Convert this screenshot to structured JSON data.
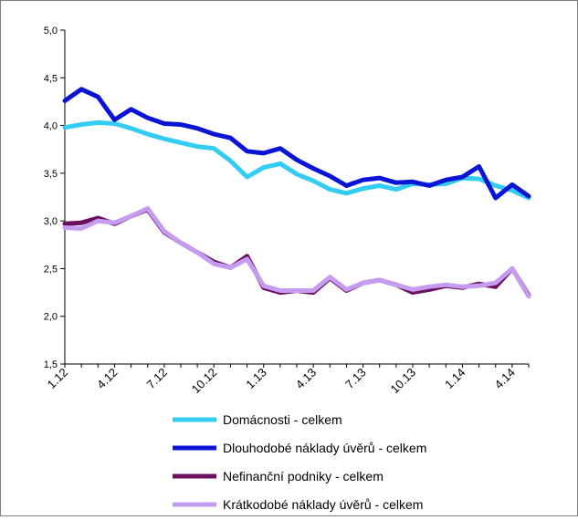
{
  "chart_data": {
    "type": "line",
    "title": "",
    "xlabel": "",
    "ylabel": "",
    "ylim": [
      1.5,
      5.0
    ],
    "yticks": [
      "1,5",
      "2,0",
      "2,5",
      "3,0",
      "3,5",
      "4,0",
      "4,5",
      "5,0"
    ],
    "ytick_values": [
      1.5,
      2.0,
      2.5,
      3.0,
      3.5,
      4.0,
      4.5,
      5.0
    ],
    "x_count": 29,
    "xticks": [
      {
        "index": 0,
        "label": "1.12"
      },
      {
        "index": 3,
        "label": "4.12"
      },
      {
        "index": 6,
        "label": "7.12"
      },
      {
        "index": 9,
        "label": "10.12"
      },
      {
        "index": 12,
        "label": "1.13"
      },
      {
        "index": 15,
        "label": "4.13"
      },
      {
        "index": 18,
        "label": "7.13"
      },
      {
        "index": 21,
        "label": "10.13"
      },
      {
        "index": 24,
        "label": "1.14"
      },
      {
        "index": 27,
        "label": "4.14"
      }
    ],
    "grid": false,
    "legend_position": "bottom",
    "series": [
      {
        "name": "Nefinanční podniky - celkem",
        "color": "#6b0f5e",
        "width": 5,
        "values": [
          2.97,
          2.98,
          3.03,
          2.97,
          3.05,
          3.12,
          2.88,
          2.77,
          2.67,
          2.57,
          2.51,
          2.63,
          2.3,
          2.25,
          2.27,
          2.25,
          2.4,
          2.27,
          2.35,
          2.38,
          2.33,
          2.25,
          2.28,
          2.32,
          2.3,
          2.34,
          2.31,
          2.5,
          2.22
        ]
      },
      {
        "name": "Krátkodobé náklady úvěrů - celkem",
        "color": "#c69cf0",
        "width": 5,
        "values": [
          2.93,
          2.92,
          3.0,
          2.98,
          3.05,
          3.13,
          2.89,
          2.77,
          2.67,
          2.55,
          2.51,
          2.6,
          2.32,
          2.27,
          2.27,
          2.27,
          2.41,
          2.28,
          2.35,
          2.38,
          2.33,
          2.28,
          2.31,
          2.33,
          2.31,
          2.32,
          2.35,
          2.5,
          2.21
        ]
      },
      {
        "name": "Domácnosti - celkem",
        "color": "#33ccf2",
        "width": 5,
        "values": [
          3.98,
          4.01,
          4.03,
          4.02,
          3.97,
          3.91,
          3.86,
          3.82,
          3.78,
          3.76,
          3.63,
          3.46,
          3.56,
          3.6,
          3.49,
          3.42,
          3.33,
          3.29,
          3.34,
          3.37,
          3.33,
          3.39,
          3.38,
          3.39,
          3.45,
          3.44,
          3.37,
          3.32,
          3.24
        ]
      },
      {
        "name": "Dlouhodobé náklady úvěrů - celkem",
        "color": "#0a14d4",
        "width": 5,
        "values": [
          4.26,
          4.38,
          4.3,
          4.06,
          4.17,
          4.08,
          4.02,
          4.01,
          3.97,
          3.91,
          3.87,
          3.73,
          3.71,
          3.76,
          3.64,
          3.55,
          3.47,
          3.37,
          3.43,
          3.45,
          3.4,
          3.41,
          3.37,
          3.43,
          3.46,
          3.57,
          3.24,
          3.38,
          3.26
        ]
      }
    ],
    "legend_order": [
      "Domácnosti - celkem",
      "Dlouhodobé náklady úvěrů - celkem",
      "Nefinanční podniky - celkem",
      "Krátkodobé náklady úvěrů - celkem"
    ]
  }
}
